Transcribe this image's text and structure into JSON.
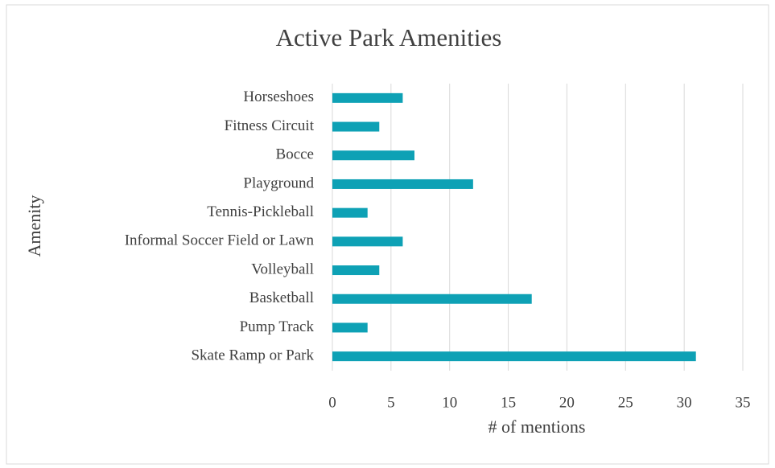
{
  "chart_data": {
    "type": "bar",
    "orientation": "horizontal",
    "title": "Active Park Amenities",
    "x_label": "# of mentions",
    "y_label": "Amenity",
    "categories": [
      "Skate Ramp or Park",
      "Pump Track",
      "Basketball",
      "Volleyball",
      "Informal Soccer Field or Lawn",
      "Tennis-Pickleball",
      "Playground",
      "Bocce",
      "Fitness Circuit",
      "Horseshoes"
    ],
    "values": [
      31,
      3,
      17,
      4,
      6,
      3,
      12,
      7,
      4,
      6
    ],
    "color": "#0ea1b5",
    "xlim": [
      0,
      35
    ],
    "xticks": [
      0,
      5,
      10,
      15,
      20,
      25,
      30,
      35
    ],
    "grid": true
  }
}
